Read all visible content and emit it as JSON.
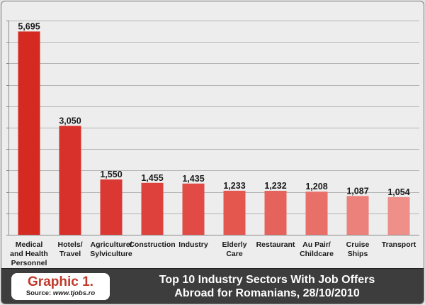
{
  "chart_data": {
    "type": "bar",
    "categories": [
      [
        "Medical",
        "and Health",
        "Personnel"
      ],
      [
        "Hotels/",
        "Travel"
      ],
      [
        "Agriculture/",
        "Sylviculture"
      ],
      [
        "Construction"
      ],
      [
        "Industry"
      ],
      [
        "Elderly",
        "Care"
      ],
      [
        "Restaurant"
      ],
      [
        "Au Pair/",
        "Childcare"
      ],
      [
        "Cruise",
        "Ships"
      ],
      [
        "Transport"
      ]
    ],
    "values": [
      5695,
      3050,
      1550,
      1455,
      1435,
      1233,
      1232,
      1208,
      1087,
      1054
    ],
    "value_labels": [
      "5,695",
      "3,050",
      "1,550",
      "1,455",
      "1,435",
      "1,233",
      "1,232",
      "1,208",
      "1,087",
      "1,054"
    ],
    "bar_colors": [
      "#d42a22",
      "#d8302b",
      "#dc3833",
      "#de403b",
      "#e14a45",
      "#e4574f",
      "#e6625c",
      "#e96f69",
      "#ec807a",
      "#ee8f89"
    ],
    "ylim": [
      0,
      6000
    ],
    "ytick_step": 600,
    "grid": true,
    "legend": "none"
  },
  "footer": {
    "badge_title": "Graphic 1.",
    "source_prefix": "Source: ",
    "source_url": "www.tjobs.ro",
    "title_line1": "Top 10 Industry Sectors With Job Offers",
    "title_line2": "Abroad for Romanians, 28/10/2010"
  },
  "colors": {
    "background": "#ededed",
    "footer": "#3d3d3d",
    "accent": "#c0392b"
  }
}
